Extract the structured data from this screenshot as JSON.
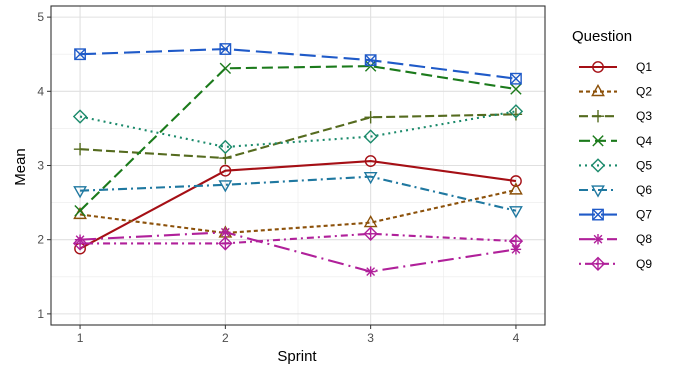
{
  "chart_data": {
    "type": "line",
    "xlabel": "Sprint",
    "ylabel": "Mean",
    "x": [
      1,
      2,
      3,
      4
    ],
    "xticks": [
      "1",
      "2",
      "3",
      "4"
    ],
    "yticks": [
      "1",
      "2",
      "3",
      "4",
      "5"
    ],
    "ylim": [
      0.85,
      5.15
    ],
    "xlim": [
      0.8,
      4.2
    ],
    "grid": true,
    "legend": {
      "title": "Question",
      "position": "right"
    },
    "series": [
      {
        "name": "Q1",
        "values": [
          1.88,
          2.93,
          3.06,
          2.79
        ],
        "color": "#a50f15",
        "dash": "solid",
        "marker": "circle"
      },
      {
        "name": "Q2",
        "values": [
          2.34,
          2.09,
          2.23,
          2.67
        ],
        "color": "#8c510a",
        "dash": "dot-short",
        "marker": "triangle"
      },
      {
        "name": "Q3",
        "values": [
          3.22,
          3.1,
          3.65,
          3.69
        ],
        "color": "#556b1f",
        "dash": "dash-medium",
        "marker": "plus"
      },
      {
        "name": "Q4",
        "values": [
          2.39,
          4.31,
          4.34,
          4.03
        ],
        "color": "#1b7a1b",
        "dash": "dash-long",
        "marker": "x"
      },
      {
        "name": "Q5",
        "values": [
          3.66,
          3.25,
          3.39,
          3.73
        ],
        "color": "#1b8a6b",
        "dash": "dot",
        "marker": "diamond"
      },
      {
        "name": "Q6",
        "values": [
          2.66,
          2.74,
          2.85,
          2.39
        ],
        "color": "#1f78a0",
        "dash": "dashdot",
        "marker": "triangle-down"
      },
      {
        "name": "Q7",
        "values": [
          4.5,
          4.57,
          4.42,
          4.17
        ],
        "color": "#1f5ac8",
        "dash": "longdash",
        "marker": "square-x"
      },
      {
        "name": "Q8",
        "values": [
          2.0,
          2.1,
          1.57,
          1.87
        ],
        "color": "#b0209a",
        "dash": "longdashdot",
        "marker": "asterisk"
      },
      {
        "name": "Q9",
        "values": [
          1.95,
          1.95,
          2.08,
          1.98
        ],
        "color": "#b0209a",
        "dash": "dotdash",
        "marker": "diamond-plus"
      }
    ]
  }
}
